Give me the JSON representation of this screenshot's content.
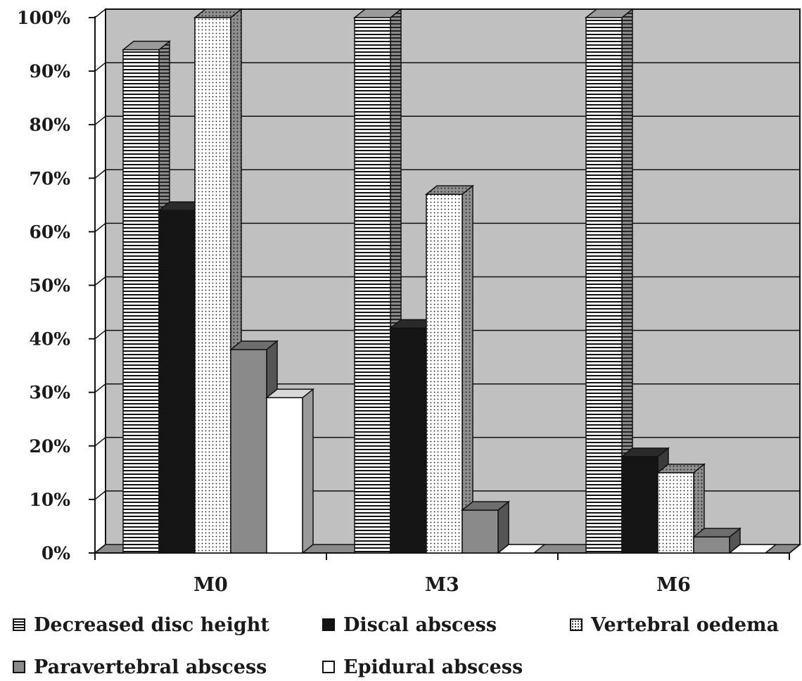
{
  "chart_data": {
    "type": "bar",
    "categories": [
      "M0",
      "M3",
      "M6"
    ],
    "series": [
      {
        "name": "Decreased disc height",
        "values": [
          94,
          100,
          100
        ],
        "pattern": "hstripe",
        "color": "#ffffff"
      },
      {
        "name": "Discal abscess",
        "values": [
          64,
          42,
          18
        ],
        "pattern": "solid",
        "color": "#151515"
      },
      {
        "name": "Vertebral oedema",
        "values": [
          100,
          67,
          15
        ],
        "pattern": "dots",
        "color": "#ffffff"
      },
      {
        "name": "Paravertebral abscess",
        "values": [
          38,
          8,
          3
        ],
        "pattern": "solid",
        "color": "#8a8a8a"
      },
      {
        "name": "Epidural abscess",
        "values": [
          29,
          0,
          0
        ],
        "pattern": "solid",
        "color": "#ffffff"
      }
    ],
    "yticks": [
      "0%",
      "10%",
      "20%",
      "30%",
      "40%",
      "50%",
      "60%",
      "70%",
      "80%",
      "90%",
      "100%"
    ],
    "ylim": [
      0,
      100
    ],
    "grid": true,
    "legend_position": "bottom",
    "plot_background": "#c0c0c0"
  }
}
